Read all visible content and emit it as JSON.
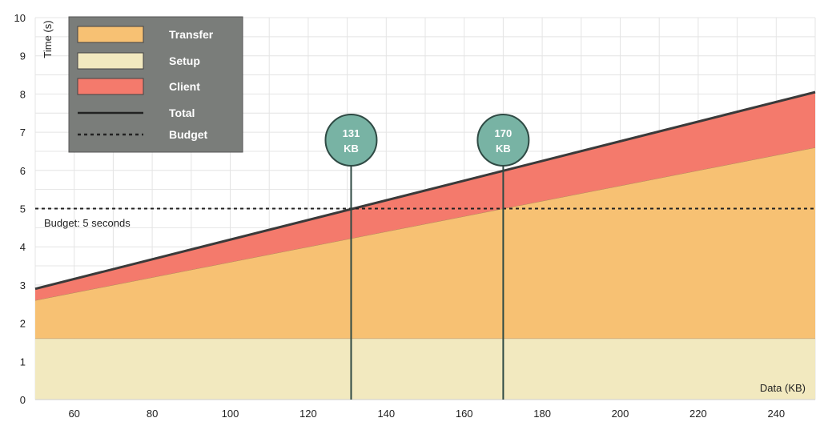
{
  "chart_data": {
    "type": "area",
    "xlabel": "Data (KB)",
    "ylabel": "Time (s)",
    "xlim": [
      50,
      250
    ],
    "ylim": [
      0,
      10
    ],
    "x_ticks": [
      60,
      80,
      100,
      120,
      140,
      160,
      180,
      200,
      220,
      240
    ],
    "y_ticks": [
      0,
      1,
      2,
      3,
      4,
      5,
      6,
      7,
      8,
      9,
      10
    ],
    "grid": true,
    "legend_position": "top-left",
    "x": [
      50,
      250
    ],
    "series": [
      {
        "name": "Setup",
        "kind": "stacked-area",
        "values": [
          1.6,
          1.6
        ],
        "color": "#f2e9bf"
      },
      {
        "name": "Transfer",
        "kind": "stacked-area",
        "values": [
          1.0,
          5.0
        ],
        "color": "#f7c173"
      },
      {
        "name": "Client",
        "kind": "stacked-area",
        "values": [
          0.3,
          1.45
        ],
        "color": "#f47a6c"
      },
      {
        "name": "Total",
        "kind": "line",
        "values": [
          2.9,
          8.05
        ],
        "color": "#3a3a3a"
      },
      {
        "name": "Budget",
        "kind": "dashed-line",
        "values": [
          5,
          5
        ],
        "color": "#222222"
      }
    ],
    "budget_label": "Budget: 5 seconds",
    "markers": [
      {
        "x": 131,
        "line1": "131",
        "line2": "KB"
      },
      {
        "x": 170,
        "line1": "170",
        "line2": "KB"
      }
    ],
    "marker_color": "#78b3a4",
    "legend_bg": "#7a7d7a"
  }
}
